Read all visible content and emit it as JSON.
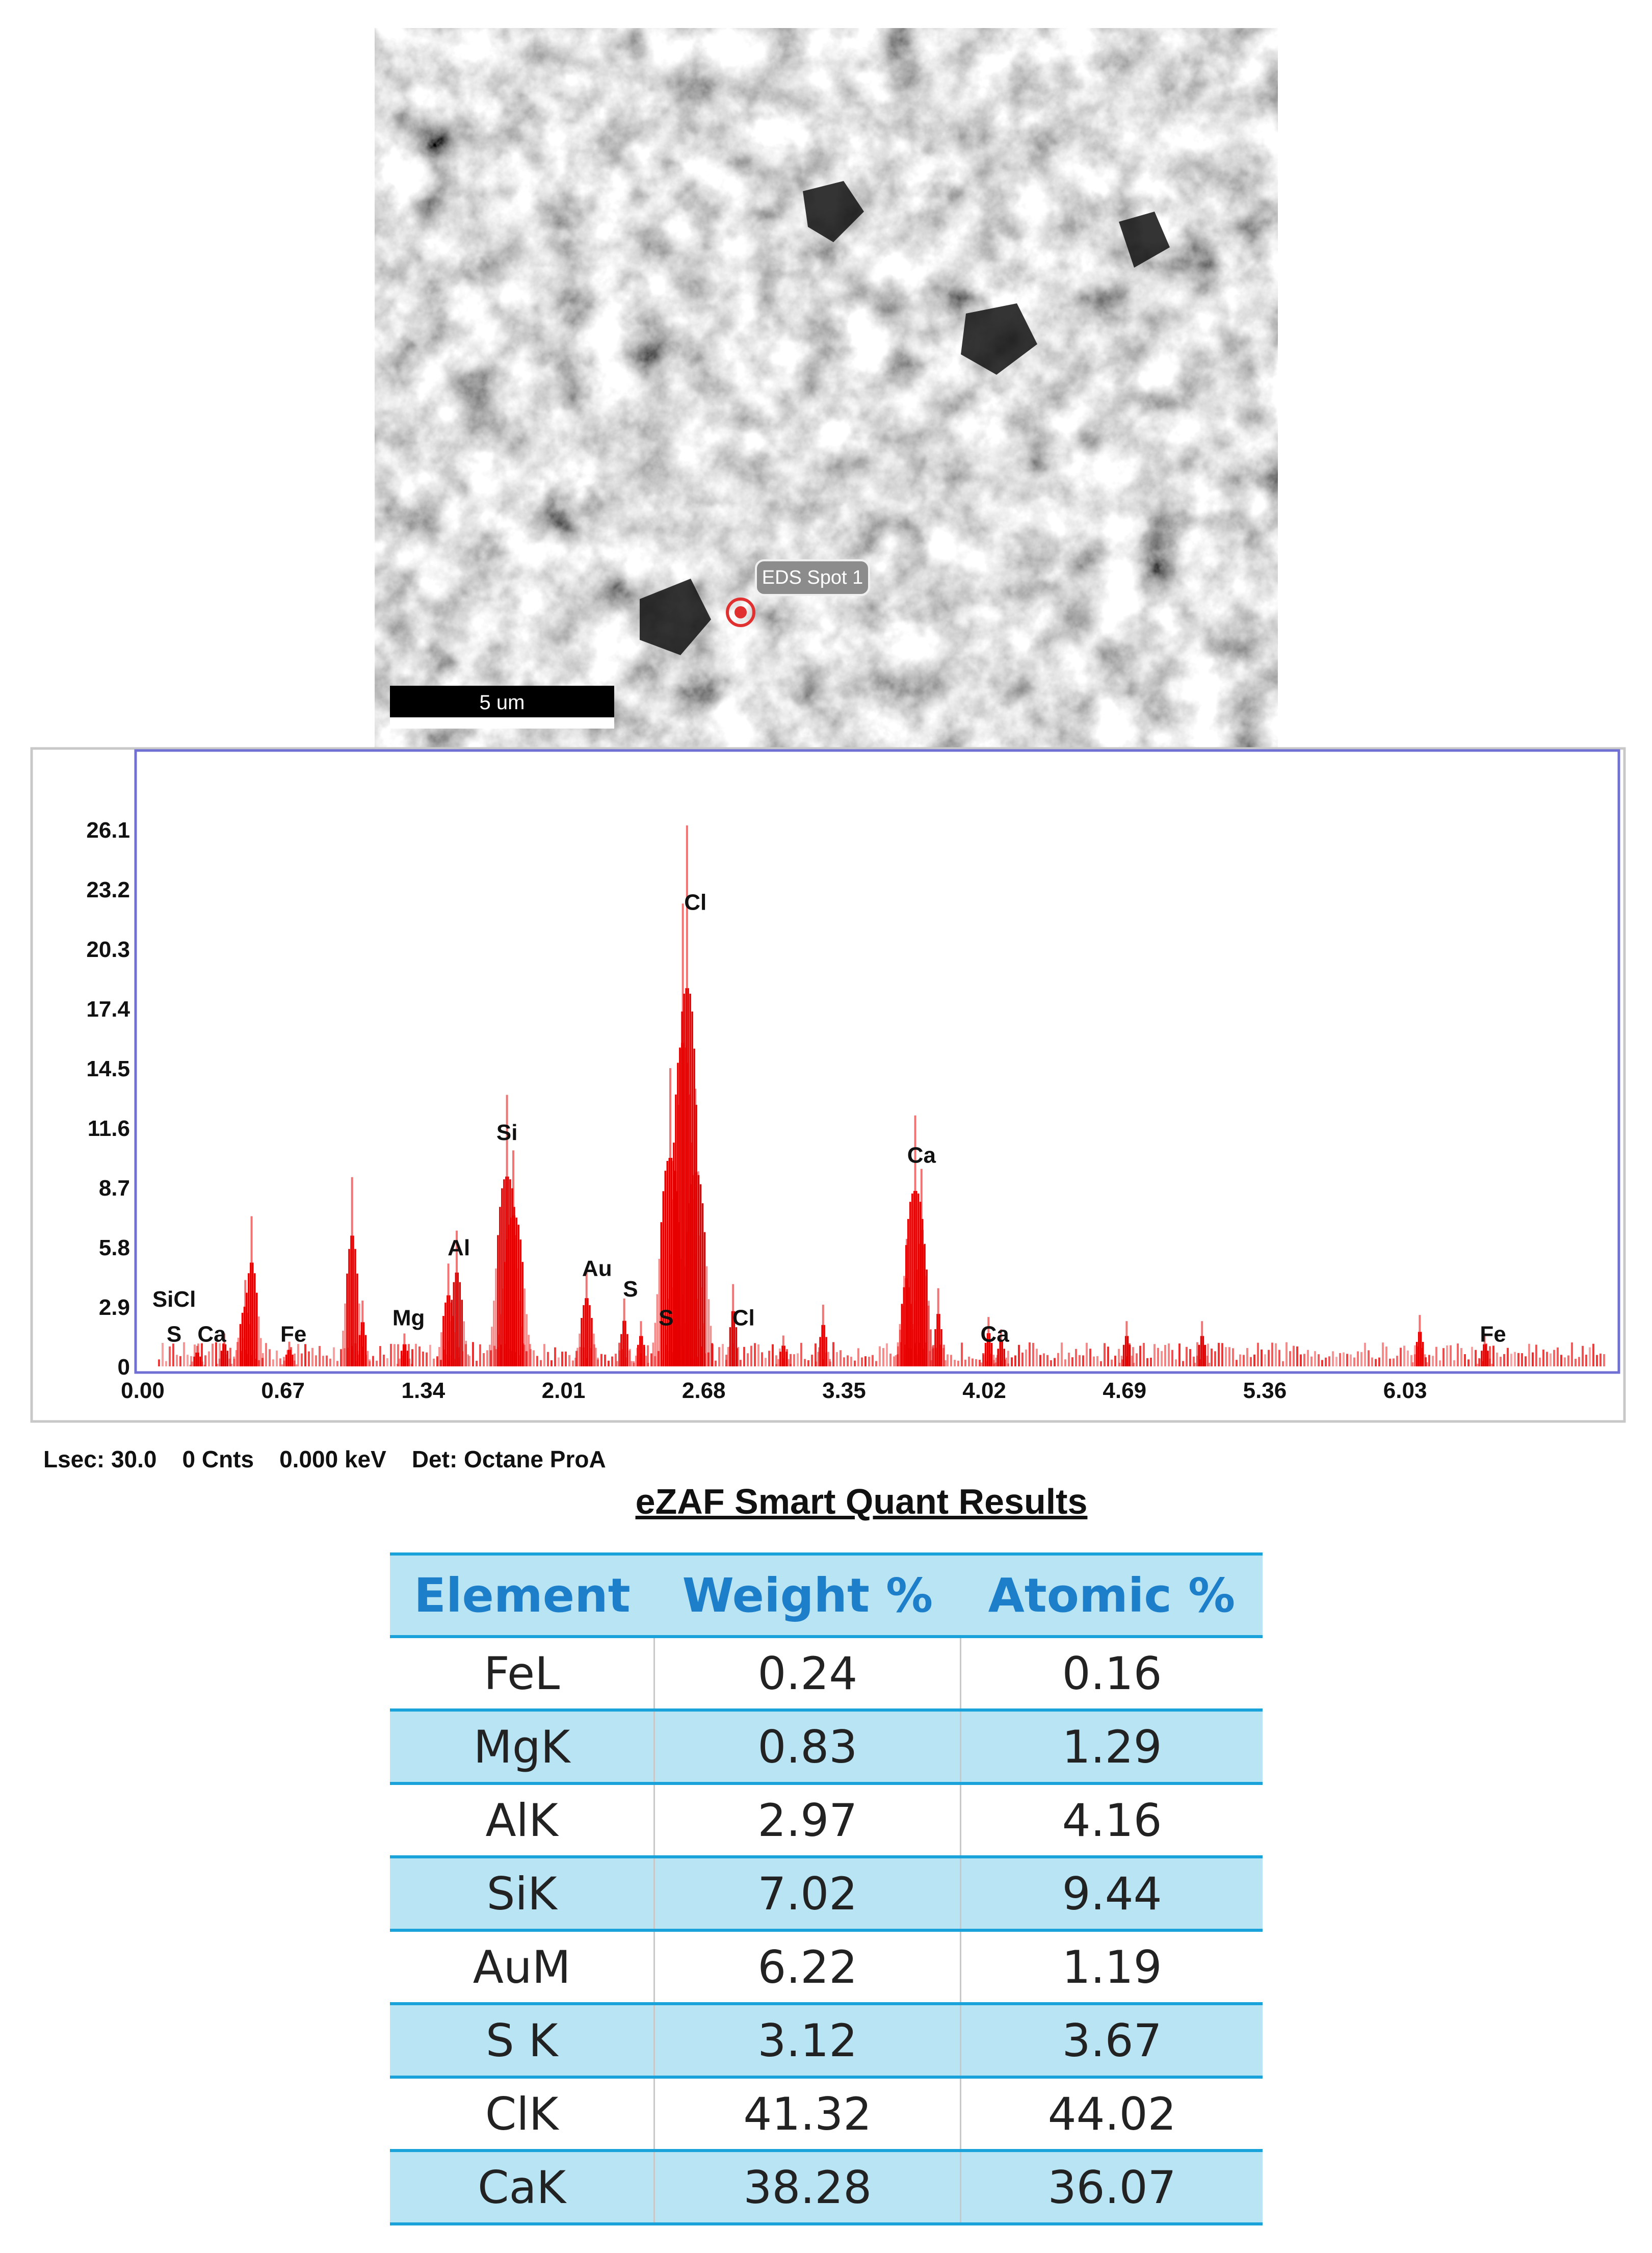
{
  "sem_image": {
    "spot_label": "EDS Spot 1",
    "scale_bar_label": "5 um"
  },
  "chart_data": {
    "type": "bar",
    "x_ticks": [
      "0.00",
      "0.67",
      "1.34",
      "2.01",
      "2.68",
      "3.35",
      "4.02",
      "4.69",
      "5.36",
      "6.03"
    ],
    "y_ticks": [
      "0",
      "2.9",
      "5.8",
      "8.7",
      "11.6",
      "14.5",
      "17.4",
      "20.3",
      "23.2",
      "26.1"
    ],
    "xlim": [
      0,
      7.0
    ],
    "ylim": [
      0,
      29
    ],
    "peaks": [
      {
        "x": 0.26,
        "y": 1.0
      },
      {
        "x": 0.39,
        "y": 1.6
      },
      {
        "x": 0.49,
        "y": 4.2
      },
      {
        "x": 0.52,
        "y": 7.3
      },
      {
        "x": 0.7,
        "y": 1.2
      },
      {
        "x": 1.0,
        "y": 9.2
      },
      {
        "x": 1.05,
        "y": 3.2
      },
      {
        "x": 1.25,
        "y": 1.6
      },
      {
        "x": 1.46,
        "y": 5.0
      },
      {
        "x": 1.5,
        "y": 6.6
      },
      {
        "x": 1.74,
        "y": 13.2
      },
      {
        "x": 1.77,
        "y": 10.5
      },
      {
        "x": 2.12,
        "y": 4.8
      },
      {
        "x": 2.3,
        "y": 3.3
      },
      {
        "x": 2.38,
        "y": 2.2
      },
      {
        "x": 2.52,
        "y": 14.5
      },
      {
        "x": 2.58,
        "y": 22.5
      },
      {
        "x": 2.6,
        "y": 26.3
      },
      {
        "x": 2.64,
        "y": 13.5
      },
      {
        "x": 2.82,
        "y": 4.0
      },
      {
        "x": 3.06,
        "y": 1.5
      },
      {
        "x": 3.25,
        "y": 3.0
      },
      {
        "x": 3.65,
        "y": 6.2
      },
      {
        "x": 3.69,
        "y": 12.2
      },
      {
        "x": 3.72,
        "y": 9.6
      },
      {
        "x": 3.8,
        "y": 3.8
      },
      {
        "x": 4.04,
        "y": 2.4
      },
      {
        "x": 4.1,
        "y": 1.8
      },
      {
        "x": 4.7,
        "y": 2.2
      },
      {
        "x": 5.06,
        "y": 2.2
      },
      {
        "x": 6.1,
        "y": 2.5
      },
      {
        "x": 6.41,
        "y": 1.6
      }
    ],
    "peak_labels": [
      {
        "text": "SiCl",
        "x": 0.15,
        "y": 2.9
      },
      {
        "text": "S",
        "x": 0.15,
        "y": 1.2
      },
      {
        "text": "Ca",
        "x": 0.33,
        "y": 1.2
      },
      {
        "text": "Fe",
        "x": 0.72,
        "y": 1.2
      },
      {
        "text": "Mg",
        "x": 1.27,
        "y": 2.0
      },
      {
        "text": "Al",
        "x": 1.51,
        "y": 5.4
      },
      {
        "text": "Si",
        "x": 1.74,
        "y": 11.0
      },
      {
        "text": "Au",
        "x": 2.17,
        "y": 4.4
      },
      {
        "text": "S",
        "x": 2.33,
        "y": 3.4
      },
      {
        "text": "S",
        "x": 2.5,
        "y": 2.0
      },
      {
        "text": "Cl",
        "x": 2.64,
        "y": 22.2
      },
      {
        "text": "Cl",
        "x": 2.87,
        "y": 2.0
      },
      {
        "text": "Ca",
        "x": 3.72,
        "y": 9.9
      },
      {
        "text": "Ca",
        "x": 4.07,
        "y": 1.2
      },
      {
        "text": "Fe",
        "x": 6.45,
        "y": 1.2
      }
    ]
  },
  "readout": {
    "lsec": "Lsec: 30.0",
    "cnts": "0 Cnts",
    "kev": "0.000 keV",
    "det": "Det: Octane ProA"
  },
  "results": {
    "title": "eZAF Smart Quant Results",
    "headers": [
      "Element",
      "Weight %",
      "Atomic %"
    ],
    "rows": [
      [
        "FeL",
        "0.24",
        "0.16"
      ],
      [
        "MgK",
        "0.83",
        "1.29"
      ],
      [
        "AlK",
        "2.97",
        "4.16"
      ],
      [
        "SiK",
        "7.02",
        "9.44"
      ],
      [
        "AuM",
        "6.22",
        "1.19"
      ],
      [
        "S K",
        "3.12",
        "3.67"
      ],
      [
        "ClK",
        "41.32",
        "44.02"
      ],
      [
        "CaK",
        "38.28",
        "36.07"
      ]
    ]
  },
  "colors": {
    "spectrum": "#e60000",
    "frame": "#6f6fd4",
    "table_band": "#b8e4f4",
    "table_header_text": "#1d7fc9",
    "table_rule": "#1aa3db"
  }
}
